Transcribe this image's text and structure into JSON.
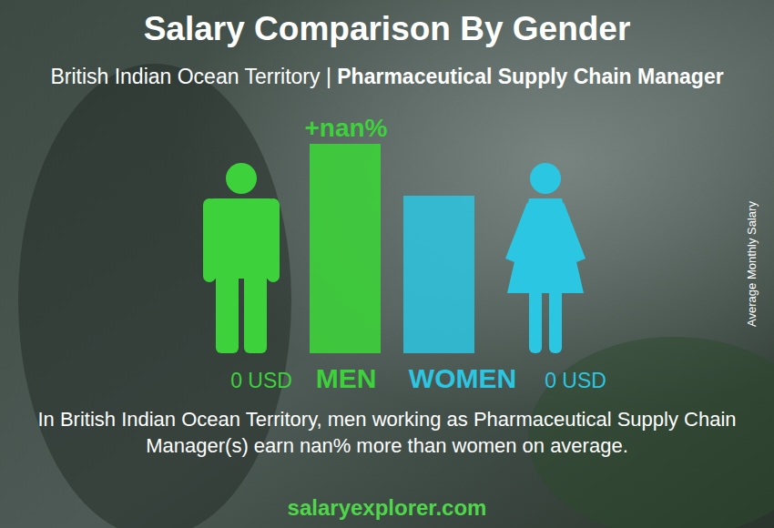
{
  "chart_data": {
    "type": "bar",
    "title": "Salary Comparison By Gender",
    "subtitle": "British Indian Ocean Territory | Pharmaceutical Supply Chain Manager",
    "categories": [
      "MEN",
      "WOMEN"
    ],
    "values": [
      0,
      0
    ],
    "value_labels": [
      "0 USD",
      "0 USD"
    ],
    "colors": [
      "#3dd13b",
      "#2bc6e2"
    ],
    "data_labels": true,
    "tick_labels": false,
    "annotation": "+nan%",
    "y_label": "Average Monthly Salary",
    "caption": "In British Indian Ocean Territory, men working as Pharmaceutical Supply Chain Manager(s) earn nan% more than women on average.",
    "source": "salaryexplorer.com"
  }
}
